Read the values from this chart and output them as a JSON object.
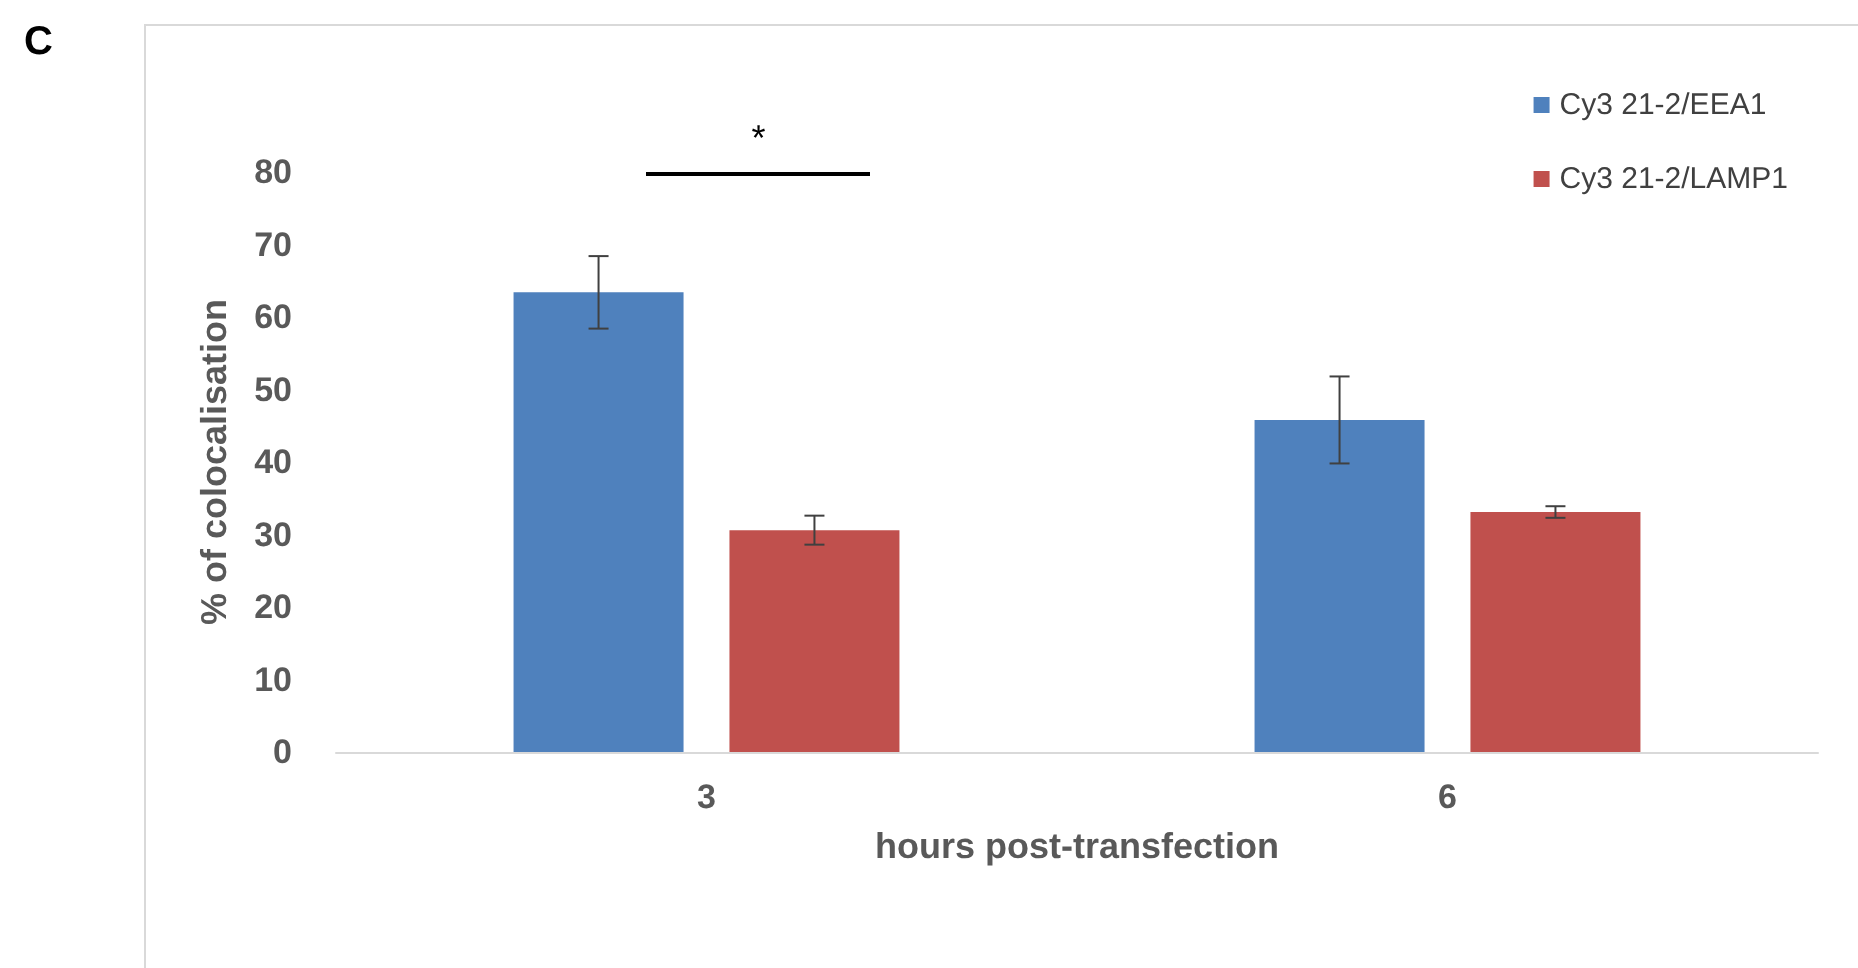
{
  "chart_data": {
    "type": "bar",
    "xlabel": "hours post-transfection",
    "ylabel": "% of colocalisation",
    "categories": [
      "3",
      "6"
    ],
    "series": [
      {
        "name": "Cy3 21-2/EEA1",
        "color": "#4f81bd",
        "values": [
          63.4,
          45.8
        ],
        "errors": [
          5,
          6
        ]
      },
      {
        "name": "Cy3 21-2/LAMP1",
        "color": "#c0504d",
        "values": [
          30.6,
          33.1
        ],
        "errors": [
          2,
          0.8
        ]
      }
    ],
    "ylim": [
      0,
      80
    ],
    "yticks": [
      0,
      10,
      20,
      30,
      40,
      50,
      60,
      70,
      80
    ],
    "grid": false,
    "legend": "top right",
    "annotations": [
      "C",
      "*"
    ]
  }
}
